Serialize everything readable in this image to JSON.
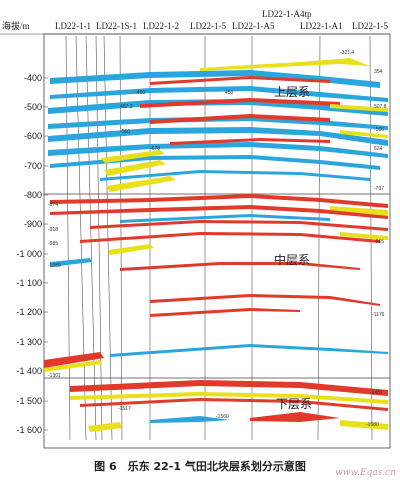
{
  "axis": {
    "label": "海拔/m",
    "ticks": [
      "-400",
      "-500",
      "-600",
      "-700",
      "-800",
      "-900",
      "-1 000",
      "-1 100",
      "-1 200",
      "-1 300",
      "-1 400",
      "-1 500",
      "-1 600"
    ]
  },
  "wells": [
    "LD22-1-1",
    "LD22-1S-1",
    "LD22-1-2",
    "LD22-1-5",
    "LD22-1-A5",
    "LD22-1-A4tp",
    "LD22-1-A1",
    "LD22-1-5"
  ],
  "zones": {
    "upper": "上层系",
    "middle": "中层系",
    "lower": "下层系"
  },
  "annotations": [
    "-321.4",
    "354",
    "-450",
    "450",
    "467.3",
    "507.8",
    "-560",
    "-566",
    "624",
    "-678",
    "-797",
    "-874",
    "-918",
    "-965",
    "-985",
    "-1089",
    "-1176",
    "-1301",
    "-1481",
    "-1517",
    "-1560",
    "-1580"
  ],
  "colors": {
    "water": "#2aa6dc",
    "gas": "#e8e01a",
    "oil": "#e23a2a",
    "frame": "#444444",
    "line": "#777777"
  },
  "caption": "图 6　乐东 22-1 气田北块层系划分示意图",
  "watermark": "www.Eqas.cn"
}
